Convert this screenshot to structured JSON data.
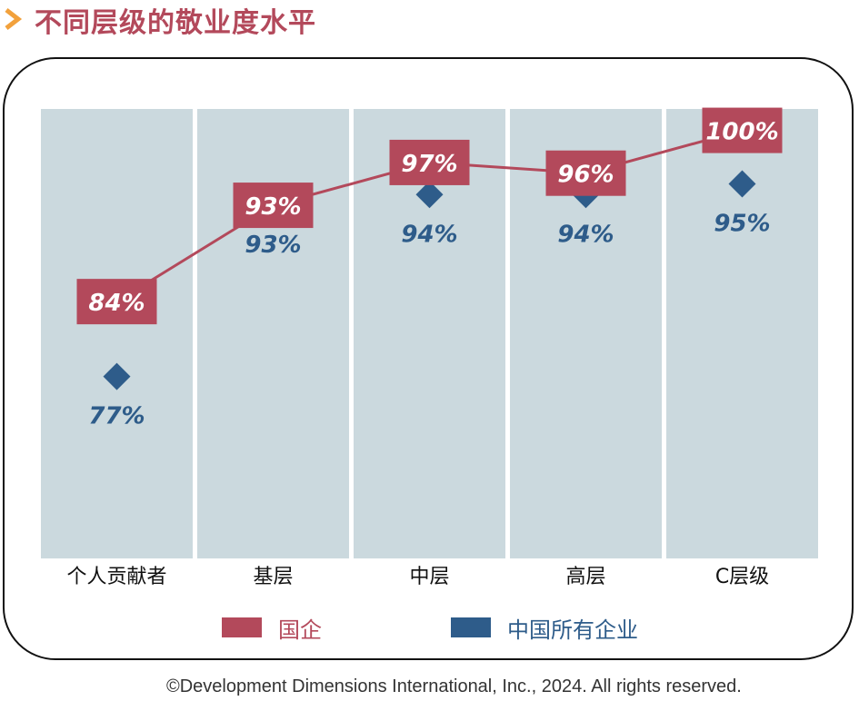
{
  "title": "不同层级的敬业度水平",
  "copyright": "©Development Dimensions International, Inc., 2024. All rights reserved.",
  "colors": {
    "accent_chevron": "#f2a13c",
    "title": "#b3495b",
    "soe": "#b3495b",
    "china_all": "#2e5c8a",
    "column_bg": "#cbd9de"
  },
  "icons": {
    "title_marker": "chevron-right-icon"
  },
  "chart_data": {
    "type": "line",
    "categories": [
      "个人贡献者",
      "基层",
      "中层",
      "高层",
      "C层级"
    ],
    "series": [
      {
        "name": "国企",
        "values": [
          84,
          93,
          97,
          96,
          100
        ],
        "labels": [
          "84%",
          "93%",
          "97%",
          "96%",
          "100%"
        ],
        "marker": "labeled-box",
        "color": "#b3495b"
      },
      {
        "name": "中国所有企业",
        "values": [
          77,
          93,
          94,
          94,
          95
        ],
        "labels": [
          "77%",
          "93%",
          "94%",
          "94%",
          "95%"
        ],
        "marker": "diamond",
        "color": "#2e5c8a"
      }
    ],
    "ylim": [
      60,
      102
    ],
    "grid": false,
    "legend": "bottom"
  }
}
